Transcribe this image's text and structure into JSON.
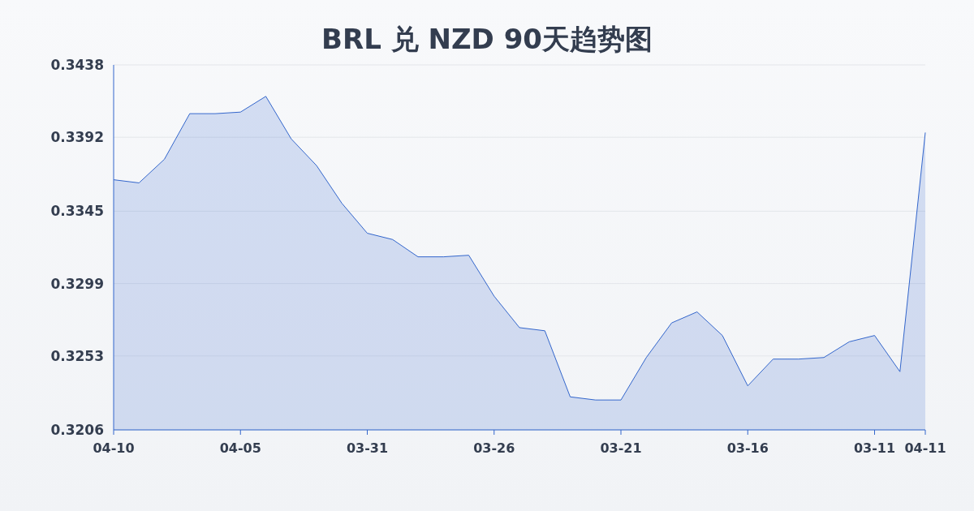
{
  "chart_data": {
    "type": "area",
    "title": "BRL 兑 NZD 90天趋势图",
    "categories": [
      "04-10",
      null,
      null,
      null,
      null,
      "04-05",
      null,
      null,
      null,
      null,
      "03-31",
      null,
      null,
      null,
      null,
      "03-26",
      null,
      null,
      null,
      null,
      "03-21",
      null,
      null,
      null,
      null,
      "03-16",
      null,
      null,
      null,
      null,
      "03-11",
      null,
      "04-11"
    ],
    "series": [
      {
        "color": "#3366cc",
        "values": [
          0.3365,
          0.3363,
          0.3378,
          0.3407,
          0.3407,
          0.3408,
          0.3418,
          0.3391,
          0.3374,
          0.335,
          0.3331,
          0.3327,
          0.3316,
          0.3316,
          0.3317,
          0.3291,
          0.3271,
          0.3269,
          0.3227,
          0.3225,
          0.3225,
          0.3252,
          0.3274,
          0.3281,
          0.3266,
          0.3234,
          0.3251,
          0.3251,
          0.3252,
          0.3262,
          0.3266,
          0.3243,
          0.3395
        ]
      }
    ],
    "ylim": [
      0.3206,
      0.3438
    ],
    "yticks": [
      0.3206,
      0.3253,
      0.3299,
      0.3345,
      0.3392,
      0.3438
    ],
    "grid": "y"
  }
}
